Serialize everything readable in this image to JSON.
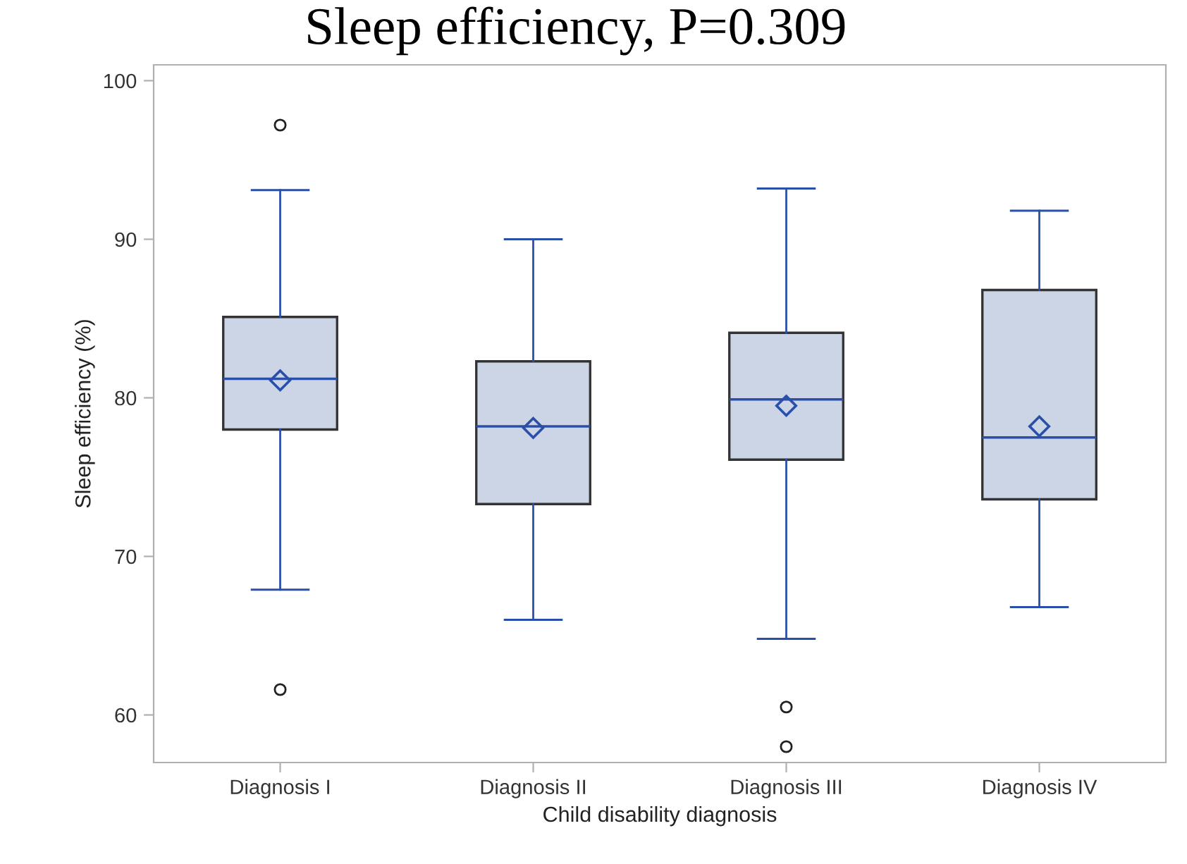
{
  "chart_data": {
    "type": "box",
    "title": "Sleep efficiency, P=0.309",
    "xlabel": "Child disability diagnosis",
    "ylabel": "Sleep efficiency (%)",
    "categories": [
      "Diagnosis I",
      "Diagnosis II",
      "Diagnosis III",
      "Diagnosis IV"
    ],
    "boxes": [
      {
        "low": 67.9,
        "q1": 78.0,
        "median": 81.2,
        "q3": 85.1,
        "high": 93.1,
        "mean": 81.1,
        "outliers": [
          97.2,
          61.6
        ]
      },
      {
        "low": 66.0,
        "q1": 73.3,
        "median": 78.2,
        "q3": 82.3,
        "high": 90.0,
        "mean": 78.1
      },
      {
        "low": 64.8,
        "q1": 76.1,
        "median": 79.9,
        "q3": 84.1,
        "high": 93.2,
        "mean": 79.5,
        "outliers": [
          60.5,
          58.0
        ]
      },
      {
        "low": 66.8,
        "q1": 73.6,
        "median": 77.5,
        "q3": 86.8,
        "high": 91.8,
        "mean": 78.2
      }
    ],
    "color": "#cbd5e6",
    "ylim": [
      57,
      101
    ],
    "yticks": [
      60,
      70,
      80,
      90,
      100
    ],
    "grid": false,
    "marker": "diamond"
  }
}
